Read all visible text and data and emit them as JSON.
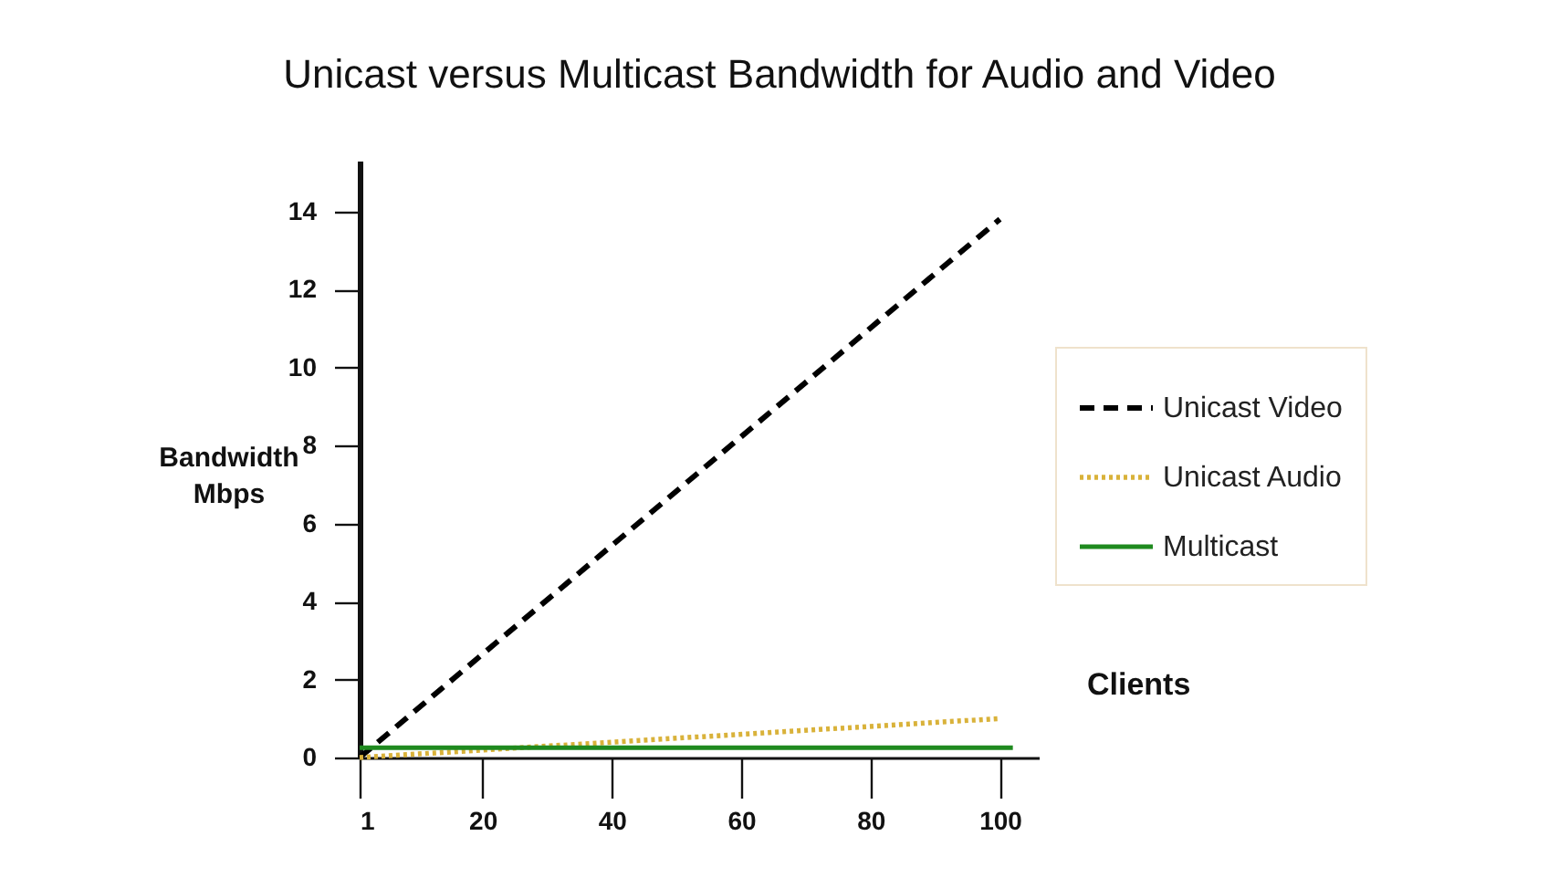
{
  "chart_data": {
    "type": "line",
    "title": "Unicast versus Multicast Bandwidth for Audio and Video",
    "xlabel": "Clients",
    "ylabel": "Bandwidth\nMbps",
    "xlim": [
      1,
      106
    ],
    "xticks": [
      1,
      20,
      40,
      60,
      80,
      100
    ],
    "ylim": [
      0,
      15.3
    ],
    "yticks": [
      0,
      2,
      4,
      6,
      8,
      10,
      12,
      14
    ],
    "grid": false,
    "legend": "right",
    "series": [
      {
        "name": "Unicast Video",
        "color": "#000000",
        "line_style": "dashed",
        "x": [
          1,
          100
        ],
        "values": [
          0,
          13.8
        ]
      },
      {
        "name": "Unicast Audio",
        "color": "#d9b23a",
        "line_style": "dotted",
        "x": [
          1,
          100
        ],
        "values": [
          0,
          1.0
        ]
      },
      {
        "name": "Multicast",
        "color": "#1f8a1f",
        "line_style": "solid",
        "x": [
          1,
          102
        ],
        "values": [
          0.25,
          0.25
        ]
      }
    ]
  }
}
